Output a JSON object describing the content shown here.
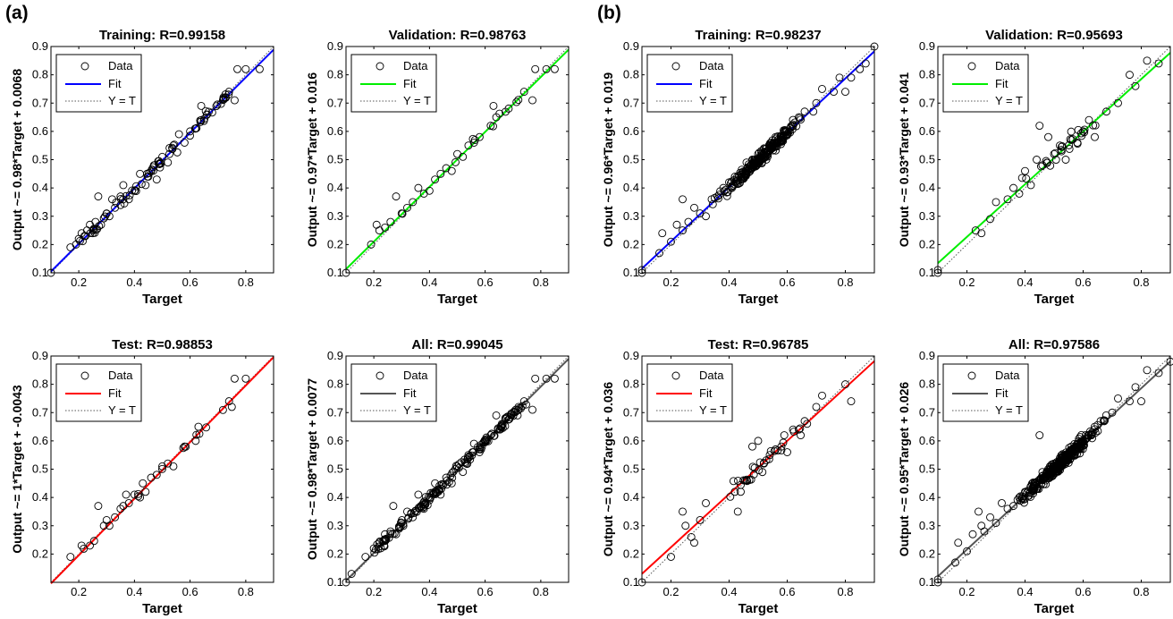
{
  "panel_labels": [
    "(a)",
    "(b)"
  ],
  "legend_labels": {
    "data": "Data",
    "fit": "Fit",
    "identity": "Y = T"
  },
  "colors": {
    "training": "#0000ff",
    "validation": "#00ee00",
    "test": "#ff0000",
    "all": "#555555",
    "identity": "#555555",
    "marker": "#000000"
  },
  "chart_data": [
    {
      "type": "scatter",
      "id": "a-training",
      "title": "Training: R=0.99158",
      "xlabel": "Target",
      "ylabel": "Output ~= 0.98*Target + 0.0068",
      "xlim": [
        0.1,
        0.9
      ],
      "ylim": [
        0.1,
        0.9
      ],
      "xticks": [
        0.2,
        0.4,
        0.6,
        0.8
      ],
      "yticks": [
        0.1,
        0.2,
        0.3,
        0.4,
        0.5,
        0.6,
        0.7,
        0.8,
        0.9
      ],
      "fit": {
        "slope": 0.98,
        "intercept": 0.0068
      },
      "fit_color": "#0000ff",
      "n_points": 110,
      "points": [
        [
          0.1,
          0.1
        ],
        [
          0.17,
          0.19
        ],
        [
          0.19,
          0.2
        ],
        [
          0.2,
          0.22
        ],
        [
          0.21,
          0.24
        ],
        [
          0.22,
          0.23
        ],
        [
          0.23,
          0.25
        ],
        [
          0.24,
          0.27
        ],
        [
          0.25,
          0.24
        ],
        [
          0.26,
          0.28
        ],
        [
          0.27,
          0.37
        ],
        [
          0.28,
          0.27
        ],
        [
          0.3,
          0.31
        ],
        [
          0.31,
          0.3
        ],
        [
          0.32,
          0.36
        ],
        [
          0.33,
          0.33
        ],
        [
          0.35,
          0.37
        ],
        [
          0.36,
          0.41
        ],
        [
          0.38,
          0.36
        ],
        [
          0.4,
          0.39
        ],
        [
          0.42,
          0.45
        ],
        [
          0.44,
          0.41
        ],
        [
          0.45,
          0.44
        ],
        [
          0.47,
          0.48
        ],
        [
          0.48,
          0.43
        ],
        [
          0.5,
          0.51
        ],
        [
          0.52,
          0.49
        ],
        [
          0.54,
          0.55
        ],
        [
          0.56,
          0.59
        ],
        [
          0.58,
          0.56
        ],
        [
          0.6,
          0.6
        ],
        [
          0.62,
          0.61
        ],
        [
          0.64,
          0.69
        ],
        [
          0.66,
          0.66
        ],
        [
          0.72,
          0.72
        ],
        [
          0.74,
          0.74
        ],
        [
          0.76,
          0.71
        ],
        [
          0.77,
          0.82
        ],
        [
          0.8,
          0.82
        ],
        [
          0.85,
          0.82
        ],
        [
          0.9,
          0.91
        ]
      ]
    },
    {
      "type": "scatter",
      "id": "a-validation",
      "title": "Validation: R=0.98763",
      "xlabel": "Target",
      "ylabel": "Output ~= 0.97*Target + 0.016",
      "xlim": [
        0.1,
        0.9
      ],
      "ylim": [
        0.1,
        0.9
      ],
      "xticks": [
        0.2,
        0.4,
        0.6,
        0.8
      ],
      "yticks": [
        0.1,
        0.2,
        0.3,
        0.4,
        0.5,
        0.6,
        0.7,
        0.8,
        0.9
      ],
      "fit": {
        "slope": 0.97,
        "intercept": 0.016
      },
      "fit_color": "#00ee00",
      "n_points": 40,
      "points": [
        [
          0.1,
          0.1
        ],
        [
          0.19,
          0.2
        ],
        [
          0.21,
          0.27
        ],
        [
          0.22,
          0.25
        ],
        [
          0.24,
          0.26
        ],
        [
          0.26,
          0.28
        ],
        [
          0.28,
          0.37
        ],
        [
          0.3,
          0.31
        ],
        [
          0.32,
          0.33
        ],
        [
          0.34,
          0.35
        ],
        [
          0.36,
          0.4
        ],
        [
          0.38,
          0.38
        ],
        [
          0.4,
          0.39
        ],
        [
          0.42,
          0.43
        ],
        [
          0.44,
          0.45
        ],
        [
          0.46,
          0.47
        ],
        [
          0.48,
          0.46
        ],
        [
          0.5,
          0.52
        ],
        [
          0.52,
          0.51
        ],
        [
          0.54,
          0.55
        ],
        [
          0.56,
          0.56
        ],
        [
          0.58,
          0.58
        ],
        [
          0.62,
          0.62
        ],
        [
          0.63,
          0.69
        ],
        [
          0.64,
          0.65
        ],
        [
          0.74,
          0.74
        ],
        [
          0.77,
          0.71
        ],
        [
          0.78,
          0.82
        ],
        [
          0.82,
          0.82
        ],
        [
          0.85,
          0.82
        ]
      ]
    },
    {
      "type": "scatter",
      "id": "a-test",
      "title": "Test: R=0.98853",
      "xlabel": "Target",
      "ylabel": "Output ~= 1*Target + -0.0043",
      "xlim": [
        0.1,
        0.9
      ],
      "ylim": [
        0.1,
        0.9
      ],
      "xticks": [
        0.2,
        0.4,
        0.6,
        0.8
      ],
      "yticks": [
        0.2,
        0.3,
        0.4,
        0.5,
        0.6,
        0.7,
        0.8,
        0.9
      ],
      "fit": {
        "slope": 1.0,
        "intercept": -0.0043
      },
      "fit_color": "#ff0000",
      "n_points": 40,
      "points": [
        [
          0.17,
          0.19
        ],
        [
          0.21,
          0.23
        ],
        [
          0.24,
          0.23
        ],
        [
          0.27,
          0.37
        ],
        [
          0.29,
          0.3
        ],
        [
          0.3,
          0.32
        ],
        [
          0.31,
          0.3
        ],
        [
          0.33,
          0.33
        ],
        [
          0.35,
          0.36
        ],
        [
          0.36,
          0.37
        ],
        [
          0.37,
          0.41
        ],
        [
          0.38,
          0.38
        ],
        [
          0.4,
          0.41
        ],
        [
          0.42,
          0.4
        ],
        [
          0.43,
          0.45
        ],
        [
          0.44,
          0.42
        ],
        [
          0.46,
          0.47
        ],
        [
          0.48,
          0.48
        ],
        [
          0.5,
          0.51
        ],
        [
          0.52,
          0.52
        ],
        [
          0.54,
          0.51
        ],
        [
          0.58,
          0.58
        ],
        [
          0.62,
          0.6
        ],
        [
          0.63,
          0.65
        ],
        [
          0.74,
          0.74
        ],
        [
          0.75,
          0.72
        ],
        [
          0.76,
          0.82
        ],
        [
          0.8,
          0.82
        ],
        [
          0.9,
          0.91
        ]
      ]
    },
    {
      "type": "scatter",
      "id": "a-all",
      "title": "All: R=0.99045",
      "xlabel": "Target",
      "ylabel": "Output ~= 0.98*Target + 0.0077",
      "xlim": [
        0.1,
        0.9
      ],
      "ylim": [
        0.1,
        0.9
      ],
      "xticks": [
        0.2,
        0.4,
        0.6,
        0.8
      ],
      "yticks": [
        0.1,
        0.2,
        0.3,
        0.4,
        0.5,
        0.6,
        0.7,
        0.8,
        0.9
      ],
      "fit": {
        "slope": 0.98,
        "intercept": 0.0077
      },
      "fit_color": "#555555",
      "n_points": 190,
      "points": [
        [
          0.1,
          0.1
        ],
        [
          0.12,
          0.13
        ],
        [
          0.17,
          0.19
        ],
        [
          0.2,
          0.22
        ],
        [
          0.22,
          0.24
        ],
        [
          0.24,
          0.27
        ],
        [
          0.26,
          0.28
        ],
        [
          0.27,
          0.37
        ],
        [
          0.28,
          0.27
        ],
        [
          0.3,
          0.31
        ],
        [
          0.32,
          0.35
        ],
        [
          0.34,
          0.33
        ],
        [
          0.36,
          0.41
        ],
        [
          0.38,
          0.36
        ],
        [
          0.4,
          0.39
        ],
        [
          0.42,
          0.45
        ],
        [
          0.44,
          0.41
        ],
        [
          0.46,
          0.47
        ],
        [
          0.48,
          0.45
        ],
        [
          0.5,
          0.51
        ],
        [
          0.52,
          0.49
        ],
        [
          0.54,
          0.55
        ],
        [
          0.56,
          0.59
        ],
        [
          0.58,
          0.56
        ],
        [
          0.6,
          0.6
        ],
        [
          0.62,
          0.62
        ],
        [
          0.64,
          0.69
        ],
        [
          0.66,
          0.66
        ],
        [
          0.72,
          0.72
        ],
        [
          0.74,
          0.74
        ],
        [
          0.77,
          0.71
        ],
        [
          0.78,
          0.82
        ],
        [
          0.82,
          0.82
        ],
        [
          0.85,
          0.82
        ],
        [
          0.9,
          0.91
        ]
      ]
    },
    {
      "type": "scatter",
      "id": "b-training",
      "title": "Training: R=0.98237",
      "xlabel": "Target",
      "ylabel": "Output ~= 0.96*Target + 0.019",
      "xlim": [
        0.1,
        0.9
      ],
      "ylim": [
        0.1,
        0.9
      ],
      "xticks": [
        0.2,
        0.4,
        0.6,
        0.8
      ],
      "yticks": [
        0.1,
        0.2,
        0.3,
        0.4,
        0.5,
        0.6,
        0.7,
        0.8,
        0.9
      ],
      "fit": {
        "slope": 0.96,
        "intercept": 0.019
      },
      "fit_color": "#0000ff",
      "n_points": 260,
      "points": [
        [
          0.1,
          0.1
        ],
        [
          0.1,
          0.11
        ],
        [
          0.16,
          0.17
        ],
        [
          0.17,
          0.24
        ],
        [
          0.2,
          0.21
        ],
        [
          0.22,
          0.27
        ],
        [
          0.24,
          0.25
        ],
        [
          0.24,
          0.36
        ],
        [
          0.26,
          0.28
        ],
        [
          0.28,
          0.33
        ],
        [
          0.3,
          0.31
        ],
        [
          0.32,
          0.3
        ],
        [
          0.34,
          0.36
        ],
        [
          0.36,
          0.37
        ],
        [
          0.38,
          0.4
        ],
        [
          0.4,
          0.42
        ],
        [
          0.42,
          0.44
        ],
        [
          0.44,
          0.43
        ],
        [
          0.46,
          0.49
        ],
        [
          0.48,
          0.5
        ],
        [
          0.5,
          0.52
        ],
        [
          0.52,
          0.54
        ],
        [
          0.54,
          0.55
        ],
        [
          0.56,
          0.58
        ],
        [
          0.58,
          0.57
        ],
        [
          0.6,
          0.6
        ],
        [
          0.62,
          0.62
        ],
        [
          0.64,
          0.65
        ],
        [
          0.66,
          0.67
        ],
        [
          0.7,
          0.7
        ],
        [
          0.72,
          0.75
        ],
        [
          0.76,
          0.74
        ],
        [
          0.78,
          0.79
        ],
        [
          0.8,
          0.74
        ],
        [
          0.82,
          0.79
        ],
        [
          0.85,
          0.82
        ],
        [
          0.87,
          0.84
        ],
        [
          0.9,
          0.9
        ]
      ]
    },
    {
      "type": "scatter",
      "id": "b-validation",
      "title": "Validation: R=0.95693",
      "xlabel": "Target",
      "ylabel": "Output ~= 0.93*Target + 0.041",
      "xlim": [
        0.1,
        0.9
      ],
      "ylim": [
        0.1,
        0.9
      ],
      "xticks": [
        0.2,
        0.4,
        0.6,
        0.8
      ],
      "yticks": [
        0.1,
        0.2,
        0.3,
        0.4,
        0.5,
        0.6,
        0.7,
        0.8,
        0.9
      ],
      "fit": {
        "slope": 0.93,
        "intercept": 0.041
      },
      "fit_color": "#00ee00",
      "n_points": 55,
      "points": [
        [
          0.1,
          0.1
        ],
        [
          0.1,
          0.11
        ],
        [
          0.23,
          0.25
        ],
        [
          0.25,
          0.24
        ],
        [
          0.28,
          0.29
        ],
        [
          0.3,
          0.35
        ],
        [
          0.34,
          0.36
        ],
        [
          0.36,
          0.4
        ],
        [
          0.38,
          0.38
        ],
        [
          0.4,
          0.46
        ],
        [
          0.42,
          0.41
        ],
        [
          0.44,
          0.5
        ],
        [
          0.45,
          0.62
        ],
        [
          0.46,
          0.48
        ],
        [
          0.48,
          0.58
        ],
        [
          0.5,
          0.52
        ],
        [
          0.52,
          0.55
        ],
        [
          0.54,
          0.5
        ],
        [
          0.56,
          0.57
        ],
        [
          0.58,
          0.56
        ],
        [
          0.6,
          0.6
        ],
        [
          0.62,
          0.64
        ],
        [
          0.64,
          0.58
        ],
        [
          0.68,
          0.67
        ],
        [
          0.72,
          0.7
        ],
        [
          0.76,
          0.8
        ],
        [
          0.78,
          0.76
        ],
        [
          0.82,
          0.85
        ],
        [
          0.86,
          0.84
        ]
      ]
    },
    {
      "type": "scatter",
      "id": "b-test",
      "title": "Test: R=0.96785",
      "xlabel": "Target",
      "ylabel": "Output ~= 0.94*Target + 0.036",
      "xlim": [
        0.1,
        0.9
      ],
      "ylim": [
        0.1,
        0.9
      ],
      "xticks": [
        0.2,
        0.4,
        0.6,
        0.8
      ],
      "yticks": [
        0.1,
        0.2,
        0.3,
        0.4,
        0.5,
        0.6,
        0.7,
        0.8,
        0.9
      ],
      "fit": {
        "slope": 0.94,
        "intercept": 0.036
      },
      "fit_color": "#ff0000",
      "n_points": 55,
      "points": [
        [
          0.1,
          0.1
        ],
        [
          0.2,
          0.19
        ],
        [
          0.24,
          0.35
        ],
        [
          0.25,
          0.3
        ],
        [
          0.27,
          0.26
        ],
        [
          0.28,
          0.24
        ],
        [
          0.3,
          0.32
        ],
        [
          0.32,
          0.38
        ],
        [
          0.42,
          0.42
        ],
        [
          0.43,
          0.35
        ],
        [
          0.44,
          0.42
        ],
        [
          0.46,
          0.46
        ],
        [
          0.48,
          0.58
        ],
        [
          0.5,
          0.6
        ],
        [
          0.52,
          0.52
        ],
        [
          0.54,
          0.55
        ],
        [
          0.56,
          0.57
        ],
        [
          0.58,
          0.58
        ],
        [
          0.6,
          0.56
        ],
        [
          0.62,
          0.64
        ],
        [
          0.64,
          0.64
        ],
        [
          0.66,
          0.67
        ],
        [
          0.7,
          0.72
        ],
        [
          0.72,
          0.76
        ],
        [
          0.8,
          0.8
        ],
        [
          0.82,
          0.74
        ]
      ]
    },
    {
      "type": "scatter",
      "id": "b-all",
      "title": "All: R=0.97586",
      "xlabel": "Target",
      "ylabel": "Output ~= 0.95*Target + 0.026",
      "xlim": [
        0.1,
        0.9
      ],
      "ylim": [
        0.1,
        0.9
      ],
      "xticks": [
        0.2,
        0.4,
        0.6,
        0.8
      ],
      "yticks": [
        0.1,
        0.2,
        0.3,
        0.4,
        0.5,
        0.6,
        0.7,
        0.8,
        0.9
      ],
      "fit": {
        "slope": 0.95,
        "intercept": 0.026
      },
      "fit_color": "#555555",
      "n_points": 370,
      "points": [
        [
          0.1,
          0.1
        ],
        [
          0.1,
          0.11
        ],
        [
          0.16,
          0.17
        ],
        [
          0.17,
          0.24
        ],
        [
          0.2,
          0.21
        ],
        [
          0.22,
          0.27
        ],
        [
          0.24,
          0.35
        ],
        [
          0.25,
          0.3
        ],
        [
          0.26,
          0.28
        ],
        [
          0.28,
          0.33
        ],
        [
          0.3,
          0.31
        ],
        [
          0.32,
          0.38
        ],
        [
          0.34,
          0.36
        ],
        [
          0.36,
          0.37
        ],
        [
          0.38,
          0.4
        ],
        [
          0.4,
          0.42
        ],
        [
          0.42,
          0.44
        ],
        [
          0.44,
          0.43
        ],
        [
          0.45,
          0.62
        ],
        [
          0.46,
          0.49
        ],
        [
          0.48,
          0.5
        ],
        [
          0.5,
          0.52
        ],
        [
          0.52,
          0.54
        ],
        [
          0.54,
          0.55
        ],
        [
          0.56,
          0.58
        ],
        [
          0.58,
          0.57
        ],
        [
          0.6,
          0.6
        ],
        [
          0.62,
          0.62
        ],
        [
          0.64,
          0.65
        ],
        [
          0.66,
          0.67
        ],
        [
          0.7,
          0.7
        ],
        [
          0.72,
          0.75
        ],
        [
          0.76,
          0.74
        ],
        [
          0.78,
          0.79
        ],
        [
          0.8,
          0.74
        ],
        [
          0.82,
          0.85
        ],
        [
          0.86,
          0.84
        ],
        [
          0.9,
          0.88
        ]
      ]
    }
  ]
}
